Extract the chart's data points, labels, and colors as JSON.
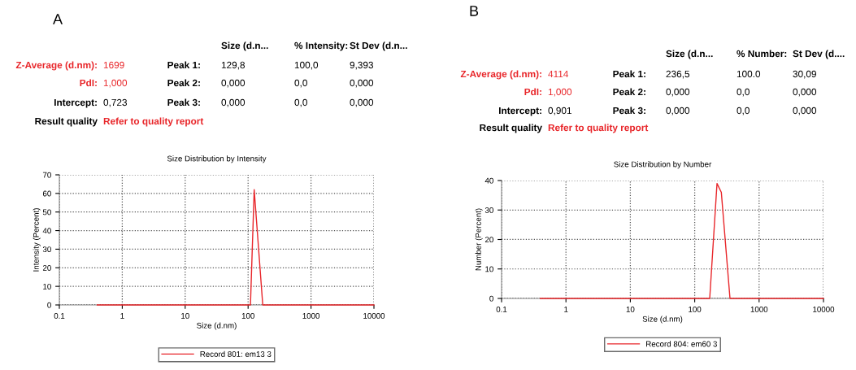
{
  "chart_data": [
    {
      "type": "other",
      "title": "A",
      "annotations": [
        null,
        null,
        null,
        "Size (d.n...",
        "% Intensity:",
        "St Dev (d.n...",
        "Z-Average (d.nm):",
        "1699",
        "Peak 1:",
        "129,8",
        "100,0",
        "9,393",
        "PdI:",
        "1,000",
        "Peak 2:",
        "0,000",
        "0,0",
        "0,000",
        "Intercept:",
        "0,723",
        "Peak 3:",
        "0,000",
        "0,0",
        "0,000",
        "Result quality",
        "Refer to quality report",
        null,
        null,
        null,
        null
      ],
      "colors": [
        "#000000",
        "#000000",
        "#000000",
        "#000000",
        "#000000",
        "#000000",
        "#e8262a",
        "#e8262a",
        "#000000",
        "#000000",
        "#000000",
        "#000000",
        "#e8262a",
        "#e8262a",
        "#000000",
        "#000000",
        "#000000",
        "#000000",
        "#000000",
        "#000000",
        "#000000",
        "#000000",
        "#000000",
        "#000000",
        "#000000",
        "#e8262a",
        "#000000",
        "#000000",
        "#000000",
        "#000000"
      ]
    },
    {
      "type": "line",
      "title": "Size Distribution by Intensity",
      "xlabel": "Size (d.nm)",
      "ylabel": "Intensity (Percent)",
      "log": "x",
      "xlim": [
        0.1,
        10000
      ],
      "xticks": [
        0.1,
        1,
        10,
        100,
        1000,
        10000
      ],
      "ylim": [
        0,
        70
      ],
      "yticks": [
        0,
        10,
        20,
        30,
        40,
        50,
        60,
        70
      ],
      "grid": true,
      "legend": "bottom",
      "series": [
        {
          "name": "Record 801: em13 3",
          "color": "#e8262a",
          "x": [
            0.4,
            109,
            125,
            171,
            10000
          ],
          "values": [
            0,
            0,
            62,
            0,
            0
          ]
        }
      ]
    },
    {
      "type": "other",
      "title": "B",
      "annotations": [
        null,
        null,
        null,
        "Size (d.n...",
        "% Number:",
        "St Dev (d....",
        "Z-Average (d.nm):",
        "4114",
        "Peak 1:",
        "236,5",
        "100.0",
        "30,09",
        "PdI:",
        "1,000",
        "Peak 2:",
        "0,000",
        "0,0",
        "0,000",
        "Intercept:",
        "0,901",
        "Peak 3:",
        "0,000",
        "0,0",
        "0,000",
        "Result quality",
        "Refer to quality report",
        null,
        null,
        null,
        null
      ],
      "colors": [
        "#000000",
        "#000000",
        "#000000",
        "#000000",
        "#000000",
        "#000000",
        "#e8262a",
        "#e8262a",
        "#000000",
        "#000000",
        "#000000",
        "#000000",
        "#e8262a",
        "#e8262a",
        "#000000",
        "#000000",
        "#000000",
        "#000000",
        "#000000",
        "#000000",
        "#000000",
        "#000000",
        "#000000",
        "#000000",
        "#000000",
        "#e8262a",
        "#000000",
        "#000000",
        "#000000",
        "#000000"
      ]
    },
    {
      "type": "line",
      "title": "Size Distribution by Number",
      "xlabel": "Size (d.nm)",
      "ylabel": "Number (Percent)",
      "log": "x",
      "xlim": [
        0.1,
        10000
      ],
      "xticks": [
        0.1,
        1,
        10,
        100,
        1000,
        10000
      ],
      "ylim": [
        0,
        40
      ],
      "yticks": [
        0,
        10,
        20,
        30,
        40
      ],
      "grid": true,
      "legend": "bottom",
      "series": [
        {
          "name": "Record 804: em60 3",
          "color": "#e8262a",
          "x": [
            0.4,
            171,
            222,
            259,
            353,
            10000
          ],
          "values": [
            0,
            0,
            39,
            36,
            0,
            0
          ]
        }
      ]
    }
  ]
}
